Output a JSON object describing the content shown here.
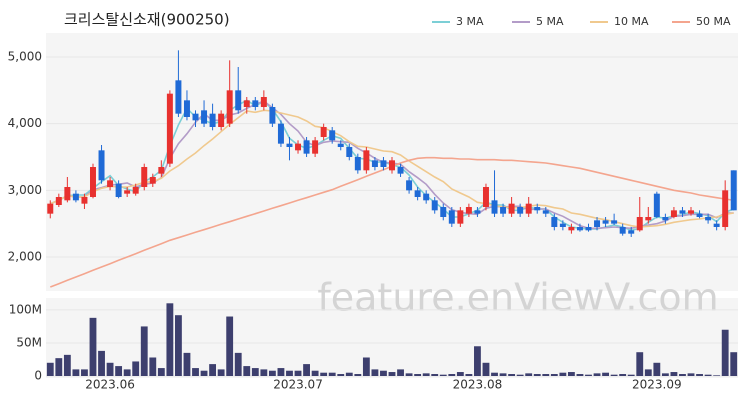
{
  "chart_data": {
    "type": "candlestick",
    "title": "크리스탈신소재(900250)",
    "watermark": "feature.enViewV.com",
    "categories": [
      null,
      null,
      null,
      null,
      null,
      null,
      null,
      "2023.06",
      null,
      null,
      null,
      null,
      null,
      null,
      null,
      null,
      null,
      null,
      null,
      null,
      null,
      null,
      null,
      null,
      null,
      null,
      null,
      null,
      null,
      "2023.07",
      null,
      null,
      null,
      null,
      null,
      null,
      null,
      null,
      null,
      null,
      null,
      null,
      null,
      null,
      null,
      null,
      null,
      null,
      null,
      null,
      "2023.08",
      null,
      null,
      null,
      null,
      null,
      null,
      null,
      null,
      null,
      null,
      null,
      null,
      null,
      null,
      null,
      null,
      null,
      null,
      null,
      null,
      "2023.09",
      null,
      null,
      null,
      null,
      null,
      null,
      null,
      null,
      null
    ],
    "open": [
      2650,
      2780,
      2850,
      2950,
      2800,
      2900,
      3600,
      3050,
      3100,
      2950,
      2950,
      3050,
      3100,
      3250,
      3400,
      4650,
      4350,
      4150,
      4200,
      4150,
      3950,
      4000,
      4500,
      4250,
      4350,
      4250,
      4250,
      4000,
      3700,
      3600,
      3750,
      3550,
      3800,
      3900,
      3700,
      3650,
      3500,
      3300,
      3450,
      3450,
      3300,
      3350,
      3150,
      3000,
      2950,
      2850,
      2750,
      2700,
      2500,
      2650,
      2700,
      2750,
      2850,
      2750,
      2650,
      2750,
      2650,
      2750,
      2700,
      2600,
      2500,
      2400,
      2450,
      2450,
      2550,
      2550,
      2550,
      2450,
      2400,
      2400,
      2550,
      2950,
      2600,
      2600,
      2700,
      2650,
      2650,
      2600,
      2500,
      2450,
      3300
    ],
    "high": [
      2850,
      2950,
      3200,
      3000,
      2950,
      3400,
      3680,
      3200,
      3150,
      3050,
      3100,
      3400,
      3250,
      3450,
      4500,
      5100,
      4500,
      4200,
      4350,
      4300,
      4200,
      4950,
      4850,
      4400,
      4400,
      4500,
      4300,
      4050,
      3800,
      3750,
      3800,
      3800,
      4000,
      3950,
      3750,
      3700,
      3550,
      3650,
      3500,
      3500,
      3500,
      3400,
      3200,
      3050,
      3000,
      2900,
      2800,
      2750,
      2750,
      2800,
      2750,
      3100,
      3300,
      2800,
      2900,
      2800,
      2900,
      2800,
      2750,
      2650,
      2550,
      2500,
      2500,
      2500,
      2600,
      2600,
      2650,
      2500,
      2450,
      2900,
      2750,
      2980,
      2650,
      2750,
      2750,
      2750,
      2700,
      2650,
      2550,
      3150,
      3300
    ],
    "low": [
      2580,
      2750,
      2820,
      2820,
      2720,
      2880,
      3100,
      3000,
      2880,
      2900,
      2920,
      3000,
      3050,
      3200,
      3350,
      4100,
      4050,
      3950,
      3950,
      3900,
      3900,
      3950,
      4150,
      4150,
      4200,
      4200,
      3950,
      3650,
      3450,
      3550,
      3500,
      3500,
      3750,
      3700,
      3600,
      3450,
      3250,
      3250,
      3300,
      3300,
      3250,
      3200,
      2950,
      2850,
      2800,
      2650,
      2550,
      2450,
      2450,
      2600,
      2600,
      2700,
      2600,
      2600,
      2600,
      2600,
      2600,
      2650,
      2600,
      2400,
      2400,
      2350,
      2380,
      2380,
      2400,
      2450,
      2480,
      2320,
      2300,
      2380,
      2500,
      2580,
      2500,
      2580,
      2600,
      2620,
      2580,
      2500,
      2400,
      2400,
      2700
    ],
    "close": [
      2800,
      2900,
      3050,
      2850,
      2900,
      3350,
      3150,
      3150,
      2900,
      3000,
      3050,
      3350,
      3200,
      3350,
      4450,
      4150,
      4100,
      4050,
      4000,
      3950,
      4150,
      4500,
      4200,
      4350,
      4250,
      4400,
      4000,
      3700,
      3650,
      3700,
      3550,
      3750,
      3950,
      3750,
      3650,
      3500,
      3300,
      3600,
      3350,
      3350,
      3450,
      3250,
      3000,
      2900,
      2850,
      2700,
      2600,
      2500,
      2700,
      2750,
      2650,
      3050,
      2650,
      2650,
      2800,
      2650,
      2800,
      2700,
      2650,
      2450,
      2450,
      2450,
      2400,
      2400,
      2450,
      2500,
      2500,
      2350,
      2350,
      2600,
      2600,
      2600,
      2550,
      2700,
      2650,
      2700,
      2600,
      2550,
      2450,
      3000,
      2700
    ],
    "up_color": "#e8312f",
    "down_color": "#1f6ad6",
    "ylim": [
      1550,
      5360
    ],
    "yticks": [
      {
        "value": 2000,
        "label": "2,000"
      },
      {
        "value": 3000,
        "label": "3,000"
      },
      {
        "value": 4000,
        "label": "4,000"
      },
      {
        "value": 5000,
        "label": "5,000"
      }
    ],
    "series": [
      {
        "name": "3 MA",
        "color": "#7ccfd6",
        "values": [
          2800,
          2850,
          2920,
          2930,
          2930,
          3030,
          3130,
          3220,
          3070,
          3020,
          2980,
          3130,
          3200,
          3300,
          3670,
          3980,
          4230,
          4100,
          4050,
          4000,
          4030,
          4200,
          4280,
          4350,
          4270,
          4330,
          4220,
          4030,
          3780,
          3680,
          3630,
          3670,
          3750,
          3820,
          3780,
          3630,
          3480,
          3470,
          3420,
          3430,
          3380,
          3350,
          3230,
          3050,
          2920,
          2820,
          2720,
          2600,
          2600,
          2650,
          2700,
          2820,
          2780,
          2780,
          2700,
          2700,
          2750,
          2720,
          2720,
          2600,
          2520,
          2450,
          2430,
          2420,
          2420,
          2450,
          2480,
          2450,
          2400,
          2430,
          2520,
          2600,
          2580,
          2620,
          2630,
          2680,
          2650,
          2620,
          2530,
          2670,
          2720
        ]
      },
      {
        "name": "5 MA",
        "color": "#b39cc8",
        "values": [
          2800,
          2850,
          2920,
          2900,
          2900,
          3010,
          3040,
          3080,
          3090,
          3110,
          3050,
          3090,
          3110,
          3190,
          3480,
          3700,
          3850,
          4020,
          4150,
          4050,
          4050,
          4130,
          4160,
          4230,
          4290,
          4340,
          4240,
          4140,
          4000,
          3890,
          3720,
          3670,
          3720,
          3740,
          3730,
          3720,
          3630,
          3560,
          3480,
          3420,
          3410,
          3390,
          3280,
          3190,
          3090,
          2940,
          2810,
          2710,
          2670,
          2650,
          2640,
          2730,
          2760,
          2750,
          2760,
          2760,
          2710,
          2720,
          2720,
          2660,
          2610,
          2540,
          2470,
          2430,
          2430,
          2440,
          2450,
          2440,
          2430,
          2460,
          2480,
          2500,
          2540,
          2610,
          2620,
          2640,
          2640,
          2640,
          2590,
          2660,
          2660
        ]
      },
      {
        "name": "10 MA",
        "color": "#f0c98e",
        "values": [
          2800,
          2850,
          2920,
          2900,
          2900,
          2980,
          3030,
          3060,
          3050,
          3050,
          3080,
          3120,
          3130,
          3180,
          3290,
          3370,
          3470,
          3560,
          3670,
          3770,
          3880,
          3990,
          4090,
          4190,
          4170,
          4200,
          4190,
          4160,
          4130,
          4100,
          4040,
          3960,
          3940,
          3880,
          3820,
          3730,
          3660,
          3650,
          3620,
          3590,
          3580,
          3530,
          3440,
          3360,
          3280,
          3200,
          3130,
          3020,
          2960,
          2900,
          2820,
          2800,
          2770,
          2750,
          2740,
          2740,
          2760,
          2780,
          2770,
          2740,
          2720,
          2660,
          2640,
          2610,
          2580,
          2560,
          2530,
          2500,
          2470,
          2450,
          2460,
          2470,
          2490,
          2520,
          2540,
          2560,
          2570,
          2590,
          2600,
          2640,
          2660
        ]
      },
      {
        "name": "50 MA",
        "color": "#f4a58e",
        "values": [
          1550,
          1600,
          1650,
          1700,
          1750,
          1800,
          1850,
          1900,
          1950,
          2000,
          2050,
          2100,
          2150,
          2200,
          2250,
          2290,
          2330,
          2370,
          2410,
          2450,
          2490,
          2530,
          2570,
          2610,
          2650,
          2690,
          2730,
          2770,
          2810,
          2850,
          2890,
          2930,
          2970,
          3010,
          3060,
          3110,
          3160,
          3210,
          3260,
          3310,
          3360,
          3410,
          3450,
          3480,
          3490,
          3490,
          3480,
          3480,
          3470,
          3470,
          3460,
          3460,
          3460,
          3450,
          3450,
          3440,
          3430,
          3420,
          3410,
          3390,
          3370,
          3350,
          3330,
          3300,
          3270,
          3240,
          3210,
          3180,
          3150,
          3120,
          3090,
          3060,
          3030,
          3000,
          2980,
          2960,
          2930,
          2910,
          2890,
          2870,
          2850
        ]
      }
    ],
    "volume": {
      "color": "#3d3f6e",
      "ylim": [
        0,
        115000000
      ],
      "yticks": [
        {
          "value": 0,
          "label": "0"
        },
        {
          "value": 50000000,
          "label": "50M"
        },
        {
          "value": 100000000,
          "label": "100M"
        }
      ],
      "values": [
        20000000,
        27000000,
        32000000,
        10000000,
        10000000,
        88000000,
        38000000,
        20000000,
        15000000,
        10000000,
        22000000,
        75000000,
        28000000,
        12000000,
        110000000,
        92000000,
        35000000,
        12000000,
        8000000,
        18000000,
        10000000,
        90000000,
        35000000,
        15000000,
        12000000,
        10000000,
        8000000,
        12000000,
        8000000,
        8000000,
        18000000,
        8000000,
        5000000,
        5000000,
        3000000,
        5000000,
        3000000,
        28000000,
        10000000,
        8000000,
        6000000,
        10000000,
        4000000,
        3000000,
        4000000,
        3000000,
        2000000,
        3000000,
        6000000,
        3000000,
        45000000,
        20000000,
        5000000,
        4000000,
        3000000,
        2000000,
        4000000,
        3000000,
        3000000,
        3000000,
        5000000,
        6000000,
        3000000,
        2000000,
        4000000,
        5000000,
        2000000,
        3000000,
        2000000,
        36000000,
        10000000,
        20000000,
        4000000,
        6000000,
        3000000,
        4000000,
        3000000,
        2000000,
        1000000,
        70000000,
        36000000
      ]
    }
  }
}
